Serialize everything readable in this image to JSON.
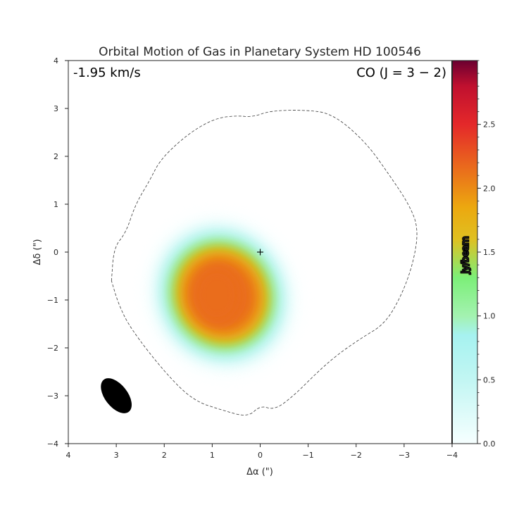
{
  "chart_data": {
    "type": "heatmap",
    "title": "Orbital Motion of Gas in Planetary System HD 100546",
    "xlabel": "Δα (\")",
    "ylabel": "Δδ (\")",
    "xlim": [
      4,
      -4
    ],
    "ylim": [
      -4,
      4
    ],
    "x_ticks": [
      4,
      3,
      2,
      1,
      0,
      -1,
      -2,
      -3,
      -4
    ],
    "x_tick_labels": [
      "4",
      "3",
      "2",
      "1",
      "0",
      "−1",
      "−2",
      "−3",
      "−4"
    ],
    "y_ticks": [
      4,
      3,
      2,
      1,
      0,
      -1,
      -2,
      -3,
      -4
    ],
    "y_tick_labels": [
      "4",
      "3",
      "2",
      "1",
      "0",
      "−1",
      "−2",
      "−3",
      "−4"
    ],
    "velocity_label": "-1.95 km/s",
    "line_label": "CO (J = 3 − 2)",
    "star_position": [
      0,
      0
    ],
    "emission": {
      "peak_value": 2.15,
      "center": [
        0.9,
        -0.9
      ],
      "extent": [
        [
          1.9,
          -2.1
        ],
        [
          -0.3,
          0.3
        ]
      ]
    },
    "contour_path": [
      [
        3.1,
        -0.6
      ],
      [
        3.05,
        0.1
      ],
      [
        2.8,
        0.4
      ],
      [
        2.6,
        1.0
      ],
      [
        2.3,
        1.5
      ],
      [
        2.1,
        1.9
      ],
      [
        1.7,
        2.3
      ],
      [
        1.3,
        2.6
      ],
      [
        0.9,
        2.8
      ],
      [
        0.5,
        2.85
      ],
      [
        0.15,
        2.82
      ],
      [
        -0.2,
        2.95
      ],
      [
        -0.9,
        2.97
      ],
      [
        -1.5,
        2.9
      ],
      [
        -2.2,
        2.3
      ],
      [
        -2.7,
        1.6
      ],
      [
        -3.1,
        1.0
      ],
      [
        -3.3,
        0.5
      ],
      [
        -3.2,
        -0.2
      ],
      [
        -2.95,
        -0.9
      ],
      [
        -2.6,
        -1.5
      ],
      [
        -2.1,
        -1.8
      ],
      [
        -1.6,
        -2.15
      ],
      [
        -1.2,
        -2.5
      ],
      [
        -0.7,
        -3.0
      ],
      [
        -0.3,
        -3.3
      ],
      [
        0.0,
        -3.2
      ],
      [
        0.25,
        -3.45
      ],
      [
        0.8,
        -3.3
      ],
      [
        1.4,
        -3.1
      ],
      [
        2.0,
        -2.5
      ],
      [
        2.7,
        -1.6
      ],
      [
        2.95,
        -1.1
      ],
      [
        3.1,
        -0.6
      ]
    ],
    "beam": {
      "center": [
        3.0,
        -3.0
      ],
      "major": 0.85,
      "minor": 0.45,
      "angle": 38
    },
    "colorbar": {
      "label": "Jy/beam",
      "min": 0.0,
      "max": 3.0,
      "ticks": [
        0.0,
        0.5,
        1.0,
        1.5,
        2.0,
        2.5
      ],
      "tick_labels": [
        "0.0",
        "0.5",
        "1.0",
        "1.5",
        "2.0",
        "2.5"
      ],
      "minor_tick_step": 0.1,
      "colors": [
        {
          "value": 0.0,
          "color": "#f6ffff"
        },
        {
          "value": 0.5,
          "color": "#c2f6f3"
        },
        {
          "value": 0.85,
          "color": "#a6f2f0"
        },
        {
          "value": 1.0,
          "color": "#a3f2b0"
        },
        {
          "value": 1.3,
          "color": "#7cef78"
        },
        {
          "value": 1.6,
          "color": "#dfc021"
        },
        {
          "value": 1.85,
          "color": "#eca80f"
        },
        {
          "value": 2.15,
          "color": "#ea6d1c"
        },
        {
          "value": 2.5,
          "color": "#e4282a"
        },
        {
          "value": 2.8,
          "color": "#c0102f"
        },
        {
          "value": 3.0,
          "color": "#6b0030"
        }
      ]
    }
  }
}
